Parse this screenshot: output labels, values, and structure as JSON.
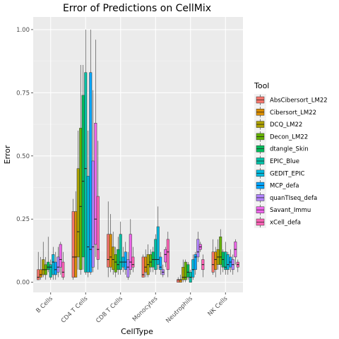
{
  "chart_data": {
    "type": "boxplot",
    "title": "Error of Predictions on CellMix",
    "xlabel": "CellType",
    "ylabel": "Error",
    "ylim": [
      -0.04,
      1.05
    ],
    "yticks": [
      0.0,
      0.25,
      0.5,
      0.75,
      1.0
    ],
    "ytick_labels": [
      "0.00",
      "0.25",
      "0.50",
      "0.75",
      "1.00"
    ],
    "grid": true,
    "background": "#ebebeb",
    "legend_position": "right",
    "legend_title": "Tool",
    "categories": [
      "B Cells",
      "CD4 T Cells",
      "CD8 T Cells",
      "Monocytes",
      "Neutrophils",
      "NK Cells"
    ],
    "series": [
      {
        "name": "AbsCibersort_LM22",
        "color": "#F8766D",
        "boxes": [
          [
            0.01,
            0.01,
            0.02,
            0.05,
            0.12
          ],
          [
            0.01,
            0.02,
            0.1,
            0.28,
            0.33
          ],
          [
            0.02,
            0.06,
            0.09,
            0.19,
            0.32
          ],
          [
            0.04,
            0.02,
            0.03,
            0.1,
            0.11
          ],
          [
            0.0,
            0.0,
            0.01,
            0.01,
            0.02
          ],
          [
            0.03,
            0.04,
            0.07,
            0.12,
            0.17
          ]
        ]
      },
      {
        "name": "Cibersort_LM22",
        "color": "#DB8E00",
        "boxes": [
          [
            0.01,
            0.02,
            0.03,
            0.05,
            0.1
          ],
          [
            0.02,
            0.02,
            0.1,
            0.28,
            0.36
          ],
          [
            0.04,
            0.06,
            0.1,
            0.19,
            0.27
          ],
          [
            0.02,
            0.04,
            0.06,
            0.1,
            0.13
          ],
          [
            0.0,
            0.0,
            0.01,
            0.01,
            0.03
          ],
          [
            0.02,
            0.05,
            0.09,
            0.12,
            0.14
          ]
        ]
      },
      {
        "name": "DCQ_LM22",
        "color": "#AEA200",
        "boxes": [
          [
            0.02,
            0.03,
            0.05,
            0.09,
            0.16
          ],
          [
            0.05,
            0.1,
            0.2,
            0.45,
            0.6
          ],
          [
            0.03,
            0.05,
            0.09,
            0.14,
            0.2
          ],
          [
            0.02,
            0.03,
            0.07,
            0.11,
            0.15
          ],
          [
            0.0,
            0.01,
            0.02,
            0.06,
            0.09
          ],
          [
            0.05,
            0.07,
            0.1,
            0.13,
            0.17
          ]
        ]
      },
      {
        "name": "Decon_LM22",
        "color": "#64B200",
        "boxes": [
          [
            0.01,
            0.03,
            0.05,
            0.07,
            0.1
          ],
          [
            0.03,
            0.05,
            0.3,
            0.61,
            0.86
          ],
          [
            0.02,
            0.04,
            0.08,
            0.11,
            0.14
          ],
          [
            0.04,
            0.06,
            0.08,
            0.11,
            0.13
          ],
          [
            0.0,
            0.01,
            0.02,
            0.08,
            0.09
          ],
          [
            0.03,
            0.07,
            0.1,
            0.18,
            0.21
          ]
        ]
      },
      {
        "name": "dtangle_Skin",
        "color": "#00BD5C",
        "boxes": [
          [
            0.04,
            0.05,
            0.06,
            0.08,
            0.18
          ],
          [
            0.05,
            0.1,
            0.4,
            0.74,
            0.86
          ],
          [
            0.03,
            0.05,
            0.07,
            0.13,
            0.18
          ],
          [
            0.04,
            0.06,
            0.09,
            0.12,
            0.14
          ],
          [
            0.01,
            0.02,
            0.04,
            0.07,
            0.08
          ],
          [
            0.04,
            0.06,
            0.09,
            0.12,
            0.13
          ]
        ]
      },
      {
        "name": "EPIC_Blue",
        "color": "#00C1A7",
        "boxes": [
          [
            0.01,
            0.02,
            0.06,
            0.07,
            0.09
          ],
          [
            0.03,
            0.04,
            0.45,
            0.83,
            1.0
          ],
          [
            0.03,
            0.05,
            0.08,
            0.19,
            0.24
          ],
          [
            0.03,
            0.05,
            0.09,
            0.17,
            0.19
          ],
          [
            0.0,
            0.0,
            0.02,
            0.04,
            0.05
          ],
          [
            0.03,
            0.05,
            0.06,
            0.12,
            0.16
          ]
        ]
      },
      {
        "name": "GEDIT_EPIC",
        "color": "#00BADE",
        "boxes": [
          [
            0.01,
            0.03,
            0.08,
            0.11,
            0.14
          ],
          [
            0.02,
            0.04,
            0.14,
            0.42,
            0.6
          ],
          [
            0.04,
            0.06,
            0.08,
            0.1,
            0.14
          ],
          [
            0.05,
            0.07,
            0.09,
            0.22,
            0.3
          ],
          [
            0.01,
            0.02,
            0.05,
            0.09,
            0.11
          ],
          [
            0.03,
            0.05,
            0.07,
            0.11,
            0.12
          ]
        ]
      },
      {
        "name": "MCP_defa",
        "color": "#00A6FF",
        "boxes": [
          [
            0.01,
            0.03,
            0.05,
            0.08,
            0.12
          ],
          [
            0.03,
            0.04,
            0.13,
            0.83,
            1.0
          ],
          [
            0.03,
            0.05,
            0.08,
            0.12,
            0.16
          ],
          [
            0.03,
            0.05,
            0.06,
            0.1,
            0.12
          ],
          [
            0.03,
            0.05,
            0.1,
            0.11,
            0.12
          ],
          [
            0.04,
            0.06,
            0.08,
            0.1,
            0.13
          ]
        ]
      },
      {
        "name": "quanTIseq_defa",
        "color": "#B385FF",
        "boxes": [
          [
            0.02,
            0.04,
            0.06,
            0.1,
            0.14
          ],
          [
            0.04,
            0.06,
            0.14,
            0.48,
            0.76
          ],
          [
            0.01,
            0.02,
            0.06,
            0.09,
            0.12
          ],
          [
            0.02,
            0.03,
            0.04,
            0.05,
            0.07
          ],
          [
            0.08,
            0.1,
            0.12,
            0.17,
            0.2
          ],
          [
            0.03,
            0.05,
            0.07,
            0.09,
            0.11
          ]
        ]
      },
      {
        "name": "Savant_Immu",
        "color": "#EF67EB",
        "boxes": [
          [
            0.03,
            0.06,
            0.09,
            0.15,
            0.16
          ],
          [
            0.1,
            0.15,
            0.25,
            0.63,
            0.96
          ],
          [
            0.03,
            0.05,
            0.08,
            0.19,
            0.25
          ],
          [
            0.06,
            0.08,
            0.11,
            0.13,
            0.14
          ],
          [
            0.12,
            0.13,
            0.14,
            0.15,
            0.16
          ],
          [
            0.07,
            0.1,
            0.13,
            0.16,
            0.17
          ]
        ]
      },
      {
        "name": "xCell_defa",
        "color": "#FF63B6",
        "boxes": [
          [
            0.01,
            0.02,
            0.04,
            0.08,
            0.12
          ],
          [
            0.05,
            0.09,
            0.13,
            0.34,
            0.56
          ],
          [
            0.04,
            0.06,
            0.07,
            0.1,
            0.14
          ],
          [
            0.02,
            0.05,
            0.12,
            0.17,
            0.2
          ],
          [
            0.02,
            0.05,
            0.07,
            0.09,
            0.11
          ],
          [
            0.04,
            0.06,
            0.07,
            0.08,
            0.09
          ]
        ]
      }
    ]
  }
}
